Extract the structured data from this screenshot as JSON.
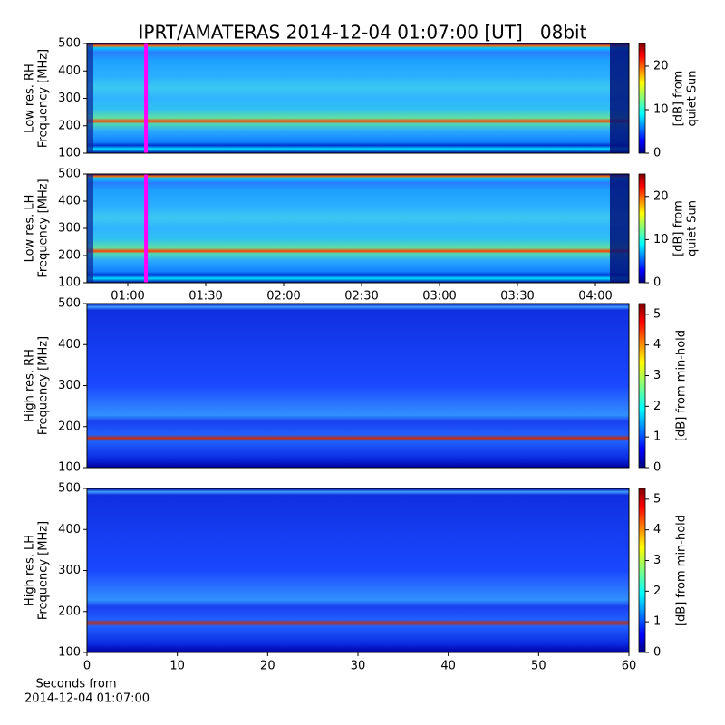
{
  "chart_data": [
    {
      "type": "heatmap",
      "title": "IPRT/AMATERAS 2014-12-04 01:07:00 [UT]   08bit",
      "ylabel": [
        "Low res. RH",
        "Frequency [MHz]"
      ],
      "ylim": [
        100,
        500
      ],
      "yticks": [
        100,
        200,
        300,
        400,
        500
      ],
      "xlim": [
        44.3,
        252.9
      ],
      "clabel": [
        "[dB] from",
        "quiet Sun"
      ],
      "clim": [
        0,
        25.2
      ],
      "cticks": [
        0,
        10,
        20
      ],
      "colormap": "jet",
      "vline": {
        "value": 67,
        "color": "#ff00ff"
      }
    },
    {
      "type": "heatmap",
      "ylabel": [
        "Low res. LH",
        "Frequency [MHz]"
      ],
      "ylim": [
        100,
        500
      ],
      "yticks": [
        100,
        200,
        300,
        400,
        500
      ],
      "xlim": [
        44.3,
        252.9
      ],
      "xticks": [
        {
          "value": 60,
          "label": "01:00"
        },
        {
          "value": 90,
          "label": "01:30"
        },
        {
          "value": 120,
          "label": "02:00"
        },
        {
          "value": 150,
          "label": "02:30"
        },
        {
          "value": 180,
          "label": "03:00"
        },
        {
          "value": 210,
          "label": "03:30"
        },
        {
          "value": 240,
          "label": "04:00"
        }
      ],
      "clabel": [
        "[dB] from",
        "quiet Sun"
      ],
      "clim": [
        0,
        25.2
      ],
      "cticks": [
        0,
        10,
        20
      ],
      "colormap": "jet",
      "vline": {
        "value": 67,
        "color": "#ff00ff"
      }
    },
    {
      "type": "heatmap",
      "ylabel": [
        "High res. RH",
        "Frequency [MHz]"
      ],
      "ylim": [
        100,
        500
      ],
      "yticks": [
        100,
        200,
        300,
        400,
        500
      ],
      "xlim": [
        0,
        60
      ],
      "clabel": [
        "[dB] from min-hold"
      ],
      "clim": [
        0,
        5.35
      ],
      "cticks": [
        0,
        1,
        2,
        3,
        4,
        5
      ],
      "colormap": "jet"
    },
    {
      "type": "heatmap",
      "ylabel": [
        "High res. LH",
        "Frequency [MHz]"
      ],
      "ylim": [
        100,
        500
      ],
      "yticks": [
        100,
        200,
        300,
        400,
        500
      ],
      "xlim": [
        0,
        60
      ],
      "xticks": [
        0,
        10,
        20,
        30,
        40,
        50,
        60
      ],
      "xlabel": [
        "Seconds from",
        "2014-12-04 01:07:00"
      ],
      "clabel": [
        "[dB] from min-hold"
      ],
      "clim": [
        0,
        5.35
      ],
      "cticks": [
        0,
        1,
        2,
        3,
        4,
        5
      ],
      "colormap": "jet"
    }
  ]
}
